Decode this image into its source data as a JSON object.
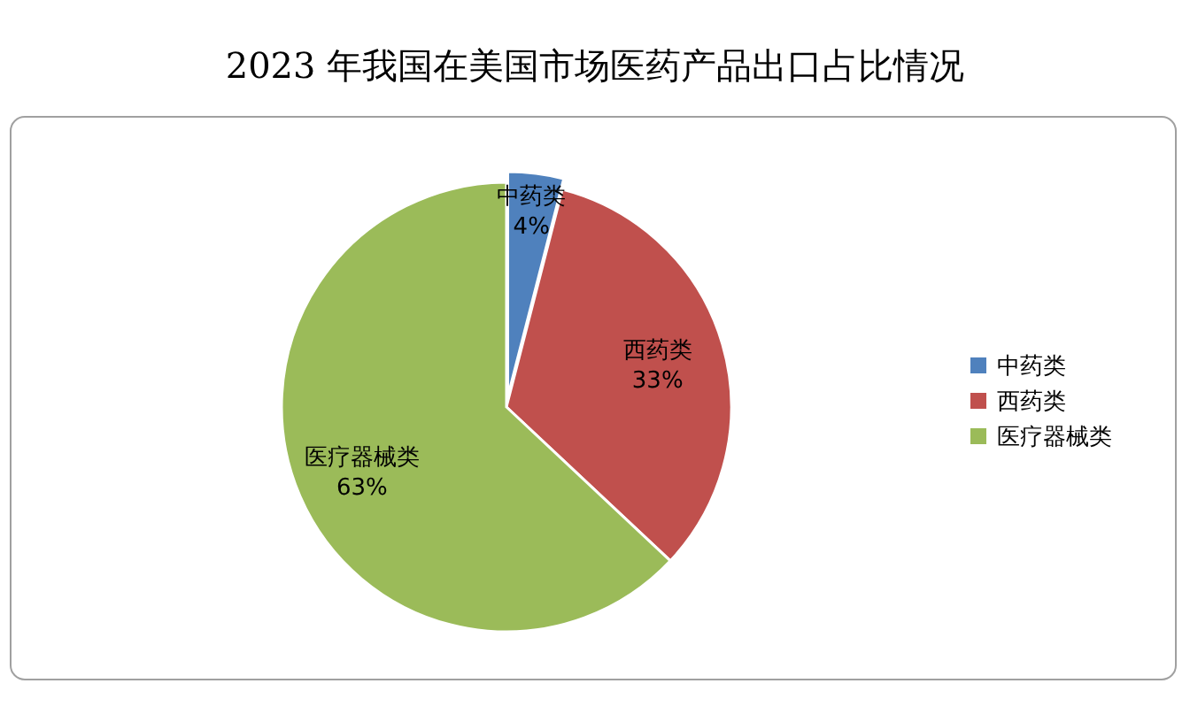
{
  "chart_data": {
    "type": "pie",
    "title": "2023 年我国在美国市场医药产品出口占比情况",
    "categories": [
      "中药类",
      "西药类",
      "医疗器械类"
    ],
    "values": [
      4,
      33,
      63
    ],
    "colors": [
      "#4f81bd",
      "#c0504d",
      "#9bbb59"
    ],
    "value_labels": [
      "4%",
      "33%",
      "63%"
    ],
    "legend": "right"
  }
}
